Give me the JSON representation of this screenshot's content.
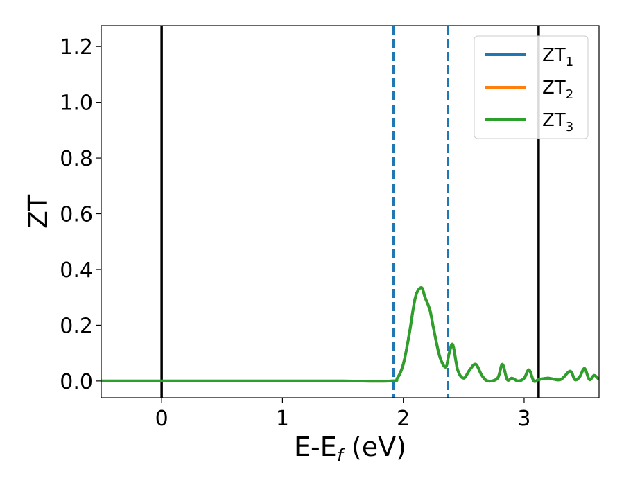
{
  "chart_data": {
    "type": "line",
    "title": "",
    "xlabel": "E-E",
    "xlabel_sub": "f",
    "xlabel_unit": " (eV)",
    "ylabel": "ZT",
    "xlim": [
      -0.5,
      3.62
    ],
    "ylim": [
      -0.06,
      1.275
    ],
    "xticks": [
      0,
      1,
      2,
      3
    ],
    "xtick_labels": [
      "0",
      "1",
      "2",
      "3"
    ],
    "yticks": [
      0.0,
      0.2,
      0.4,
      0.6,
      0.8,
      1.0,
      1.2
    ],
    "ytick_labels": [
      "0.0",
      "0.2",
      "0.4",
      "0.6",
      "0.8",
      "1.0",
      "1.2"
    ],
    "grid": false,
    "legend_placement": "top-right",
    "vlines": [
      {
        "x": 0.0,
        "style": "solid",
        "color": "#000000"
      },
      {
        "x": 1.92,
        "style": "dashed",
        "color": "#1f77b4"
      },
      {
        "x": 2.37,
        "style": "dashed",
        "color": "#1f77b4"
      },
      {
        "x": 3.12,
        "style": "solid",
        "color": "#000000"
      }
    ],
    "series": [
      {
        "name": "ZT",
        "sub": "1",
        "color": "#1f77b4"
      },
      {
        "name": "ZT",
        "sub": "2",
        "color": "#ff7f0e"
      },
      {
        "name": "ZT",
        "sub": "3",
        "color": "#2ca02c"
      }
    ],
    "x": [
      -0.5,
      0.0,
      0.5,
      1.0,
      1.5,
      1.9,
      1.95,
      2.0,
      2.05,
      2.1,
      2.15,
      2.18,
      2.22,
      2.25,
      2.3,
      2.35,
      2.38,
      2.41,
      2.45,
      2.5,
      2.55,
      2.6,
      2.65,
      2.7,
      2.78,
      2.82,
      2.86,
      2.9,
      2.95,
      3.0,
      3.04,
      3.08,
      3.12,
      3.2,
      3.3,
      3.38,
      3.42,
      3.46,
      3.5,
      3.54,
      3.58,
      3.62
    ],
    "y": [
      0.0,
      0.0,
      0.0,
      0.0,
      0.0,
      0.0,
      0.01,
      0.06,
      0.17,
      0.3,
      0.335,
      0.3,
      0.255,
      0.19,
      0.09,
      0.05,
      0.1,
      0.13,
      0.04,
      0.01,
      0.04,
      0.06,
      0.02,
      0.0,
      0.01,
      0.06,
      0.005,
      0.01,
      0.0,
      0.01,
      0.04,
      0.0,
      0.005,
      0.01,
      0.005,
      0.035,
      0.005,
      0.015,
      0.045,
      0.005,
      0.02,
      0.005
    ]
  }
}
